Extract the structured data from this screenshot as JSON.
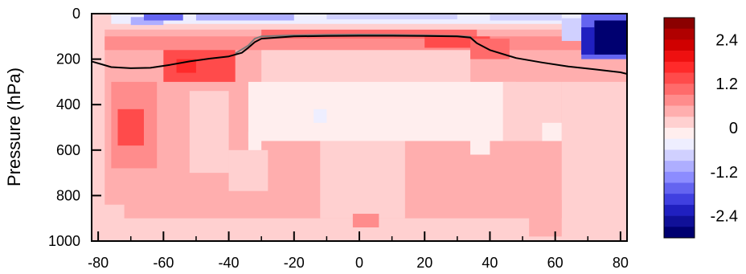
{
  "chart_data": {
    "type": "heatmap",
    "ylabel": "Pressure (hPa)",
    "xlim": [
      -82,
      82
    ],
    "ylim": [
      1000,
      0
    ],
    "x_tick_labels": [
      "-80",
      "-60",
      "-40",
      "-20",
      "0",
      "20",
      "40",
      "60",
      "80"
    ],
    "x_ticks": [
      -80,
      -60,
      -40,
      -20,
      0,
      20,
      40,
      60,
      80
    ],
    "y_tick_labels": [
      "0",
      "200",
      "400",
      "600",
      "800",
      "1000"
    ],
    "y_ticks": [
      0,
      200,
      400,
      600,
      800,
      1000
    ],
    "colorbar": {
      "labels": [
        "2.4",
        "1.2",
        "0",
        "-1.2",
        "-2.4"
      ],
      "label_values": [
        2.4,
        1.2,
        0,
        -1.2,
        -2.4
      ],
      "range": [
        -3.0,
        3.0
      ],
      "n_levels": 20,
      "colors_top_to_bottom": [
        "#8b0000",
        "#b00000",
        "#d00000",
        "#ee1010",
        "#ff2a2a",
        "#ff4b4b",
        "#ff6b6b",
        "#ff8c8c",
        "#ffaeae",
        "#ffd0d0",
        "#ffeeee",
        "#eeeeff",
        "#d0d0ff",
        "#aeaeff",
        "#8c8cff",
        "#6464f0",
        "#4040e0",
        "#2020c0",
        "#101098",
        "#000070"
      ]
    },
    "tropopause_black": {
      "lat": [
        -82,
        -76,
        -70,
        -64,
        -58,
        -52,
        -46,
        -40,
        -36,
        -34,
        -32,
        -30,
        -20,
        -10,
        0,
        10,
        20,
        30,
        34,
        36,
        40,
        48,
        56,
        64,
        72,
        80,
        82
      ],
      "pressure": [
        210,
        235,
        240,
        238,
        225,
        210,
        198,
        188,
        172,
        150,
        125,
        110,
        100,
        98,
        97,
        97,
        98,
        100,
        105,
        130,
        160,
        195,
        215,
        232,
        245,
        258,
        265
      ]
    },
    "tropopause_gray": {
      "lat": [
        -38,
        -34,
        -32,
        -30,
        -20,
        -10,
        0,
        10,
        20,
        30,
        34,
        36
      ],
      "pressure": [
        175,
        140,
        110,
        100,
        95,
        93,
        92,
        93,
        95,
        98,
        102,
        130
      ]
    },
    "regions": [
      {
        "lat0": -82,
        "lat1": 82,
        "p0": 0,
        "p1": 1000,
        "value": 0.35
      },
      {
        "lat0": -82,
        "lat1": -78,
        "p0": 0,
        "p1": 1000,
        "value": 0.0
      },
      {
        "lat0": -82,
        "lat1": -72,
        "p0": 840,
        "p1": 1000,
        "value": 0.0
      },
      {
        "lat0": -30,
        "lat1": 34,
        "p0": 100,
        "p1": 400,
        "value": 0.1
      },
      {
        "lat0": -8,
        "lat1": 34,
        "p0": 150,
        "p1": 320,
        "value": 0.0
      },
      {
        "lat0": -34,
        "lat1": 48,
        "p0": 300,
        "p1": 560,
        "value": -0.12
      },
      {
        "lat0": -14,
        "lat1": -10,
        "p0": 420,
        "p1": 480,
        "value": -0.5
      },
      {
        "lat0": -34,
        "lat1": -30,
        "p0": 520,
        "p1": 640,
        "value": -0.1
      },
      {
        "lat0": 34,
        "lat1": 40,
        "p0": 520,
        "p1": 620,
        "value": -0.1
      },
      {
        "lat0": -12,
        "lat1": 14,
        "p0": 560,
        "p1": 900,
        "value": 0.1
      },
      {
        "lat0": -40,
        "lat1": -28,
        "p0": 600,
        "p1": 780,
        "value": 0.15
      },
      {
        "lat0": -52,
        "lat1": -40,
        "p0": 340,
        "p1": 700,
        "value": 0.1
      },
      {
        "lat0": 44,
        "lat1": 62,
        "p0": 300,
        "p1": 560,
        "value": 0.1
      },
      {
        "lat0": 56,
        "lat1": 62,
        "p0": 480,
        "p1": 560,
        "value": -0.2
      },
      {
        "lat0": 62,
        "lat1": 82,
        "p0": 300,
        "p1": 1000,
        "value": 0.05
      },
      {
        "lat0": -82,
        "lat1": 82,
        "p0": 900,
        "p1": 1000,
        "value": 0.2
      },
      {
        "lat0": -2,
        "lat1": 6,
        "p0": 880,
        "p1": 940,
        "value": 0.6
      },
      {
        "lat0": 52,
        "lat1": 62,
        "p0": 820,
        "p1": 980,
        "value": 0.5
      },
      {
        "lat0": -76,
        "lat1": -62,
        "p0": 300,
        "p1": 680,
        "value": 0.7
      },
      {
        "lat0": -74,
        "lat1": -66,
        "p0": 420,
        "p1": 580,
        "value": 1.2
      },
      {
        "lat0": -60,
        "lat1": -38,
        "p0": 150,
        "p1": 300,
        "value": 1.2
      },
      {
        "lat0": -56,
        "lat1": -50,
        "p0": 200,
        "p1": 260,
        "value": 1.6
      },
      {
        "lat0": -78,
        "lat1": 82,
        "p0": 100,
        "p1": 160,
        "value": 0.6
      },
      {
        "lat0": -30,
        "lat1": 36,
        "p0": 70,
        "p1": 110,
        "value": 0.9
      },
      {
        "lat0": 20,
        "lat1": 40,
        "p0": 100,
        "p1": 150,
        "value": 1.2
      },
      {
        "lat0": 34,
        "lat1": 46,
        "p0": 110,
        "p1": 200,
        "value": 1.0
      },
      {
        "lat0": -82,
        "lat1": 82,
        "p0": 0,
        "p1": 70,
        "value": 0.2
      },
      {
        "lat0": -76,
        "lat1": 80,
        "p0": 0,
        "p1": 45,
        "value": -0.6
      },
      {
        "lat0": -70,
        "lat1": -60,
        "p0": 15,
        "p1": 50,
        "value": -1.2
      },
      {
        "lat0": -66,
        "lat1": -54,
        "p0": 0,
        "p1": 30,
        "value": -1.8
      },
      {
        "lat0": -50,
        "lat1": -20,
        "p0": 0,
        "p1": 30,
        "value": -1.0
      },
      {
        "lat0": -10,
        "lat1": 30,
        "p0": 0,
        "p1": 25,
        "value": -0.9
      },
      {
        "lat0": 40,
        "lat1": 62,
        "p0": 0,
        "p1": 30,
        "value": -0.8
      },
      {
        "lat0": 62,
        "lat1": 68,
        "p0": 20,
        "p1": 120,
        "value": -0.9
      },
      {
        "lat0": 68,
        "lat1": 82,
        "p0": 0,
        "p1": 200,
        "value": -1.8
      },
      {
        "lat0": 72,
        "lat1": 82,
        "p0": 30,
        "p1": 180,
        "value": -2.7
      },
      {
        "lat0": 68,
        "lat1": 72,
        "p0": 60,
        "p1": 180,
        "value": -2.2
      }
    ]
  }
}
